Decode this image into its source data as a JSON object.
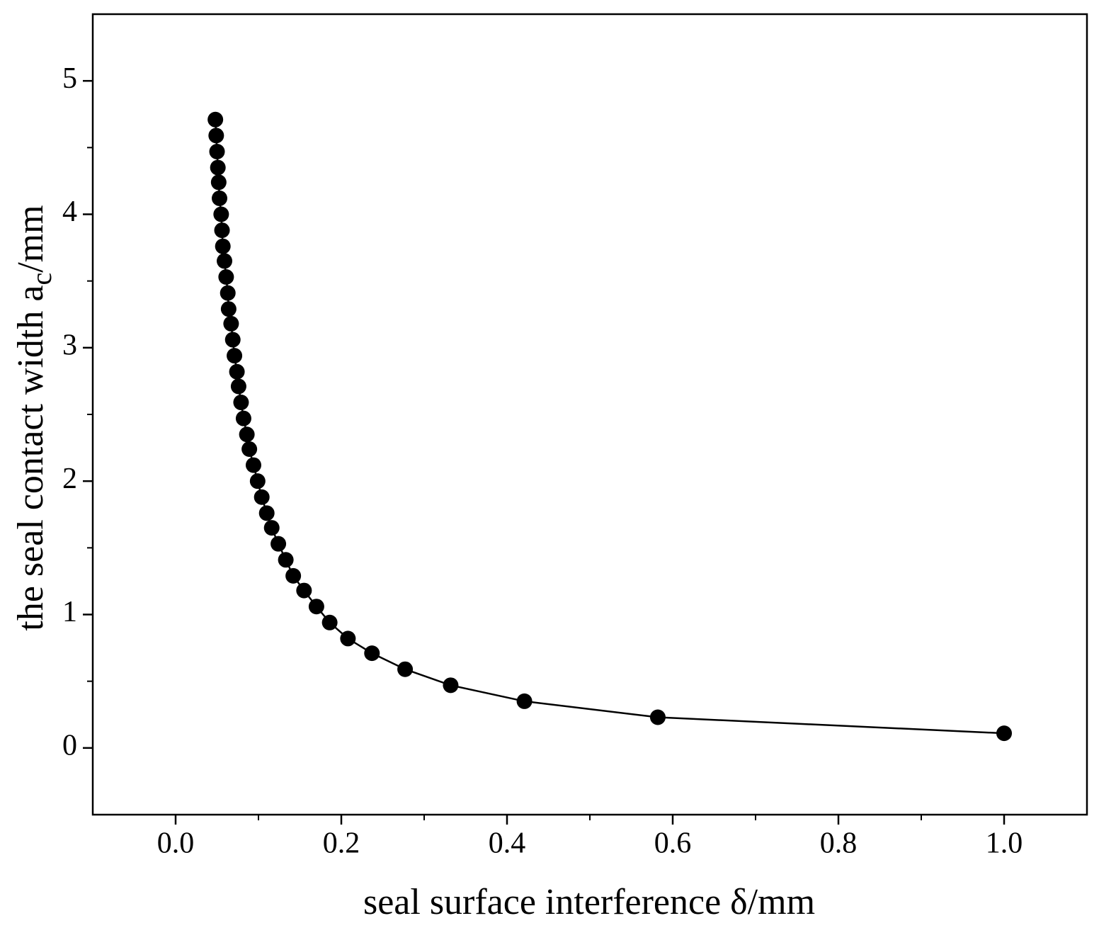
{
  "chart_data": {
    "type": "scatter",
    "xlabel": "seal surface interference δ/mm",
    "ylabel": {
      "text": "the seal contact width a",
      "sub": "c",
      "unit": "/mm"
    },
    "xlim": [
      -0.1,
      1.1
    ],
    "ylim": [
      -0.5,
      5.5
    ],
    "xticks": [
      {
        "value": 0,
        "label": "0.0"
      },
      0.2,
      0.4,
      0.6,
      0.8,
      {
        "value": 1,
        "label": "1.0"
      }
    ],
    "yticks": [
      0,
      1,
      2,
      3,
      4,
      5
    ],
    "xminor_ticks": [
      0.1,
      0.3,
      0.5,
      0.7,
      0.9
    ],
    "yminor_ticks": [
      0.5,
      1.5,
      2.5,
      3.5,
      4.5
    ],
    "line": true,
    "series": [
      {
        "color": "#000000",
        "x": [
          0.048,
          0.049,
          0.05,
          0.051,
          0.052,
          0.053,
          0.055,
          0.056,
          0.057,
          0.059,
          0.061,
          0.063,
          0.064,
          0.067,
          0.069,
          0.071,
          0.074,
          0.076,
          0.079,
          0.082,
          0.086,
          0.089,
          0.094,
          0.099,
          0.104,
          0.11,
          0.116,
          0.124,
          0.133,
          0.142,
          0.155,
          0.17,
          0.186,
          0.208,
          0.237,
          0.277,
          0.332,
          0.421,
          0.582,
          1.0
        ],
        "values": [
          4.71,
          4.59,
          4.47,
          4.35,
          4.24,
          4.12,
          4.0,
          3.88,
          3.76,
          3.65,
          3.53,
          3.41,
          3.29,
          3.18,
          3.06,
          2.94,
          2.82,
          2.71,
          2.59,
          2.47,
          2.35,
          2.24,
          2.12,
          2.0,
          1.88,
          1.76,
          1.65,
          1.53,
          1.41,
          1.29,
          1.18,
          1.06,
          0.94,
          0.82,
          0.71,
          0.59,
          0.47,
          0.35,
          0.23,
          0.11
        ]
      }
    ]
  }
}
